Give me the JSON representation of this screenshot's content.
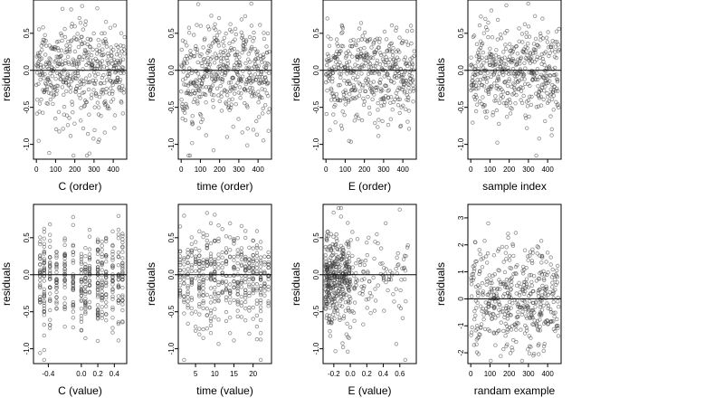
{
  "chart_data": [
    {
      "type": "scatter",
      "xlabel": "C (order)",
      "ylabel": "residuals",
      "xlim": [
        -15,
        470
      ],
      "ylim": [
        -1.2,
        0.95
      ],
      "xticks": [
        0,
        100,
        200,
        300,
        400
      ],
      "xtick_labels": [
        "0",
        "100",
        "200",
        "300",
        "400"
      ],
      "yticks": [
        0.5,
        0.0,
        -0.5,
        -1.0
      ],
      "ytick_labels": [
        "0.5",
        "0.0",
        "-0.5",
        "-1.0"
      ],
      "hline": 0,
      "n_points": 460
    },
    {
      "type": "scatter",
      "xlabel": "time (order)",
      "ylabel": "residuals",
      "xlim": [
        -15,
        470
      ],
      "ylim": [
        -1.2,
        0.95
      ],
      "xticks": [
        0,
        100,
        200,
        300,
        400
      ],
      "xtick_labels": [
        "0",
        "100",
        "200",
        "300",
        "400"
      ],
      "yticks": [
        0.5,
        0.0,
        -0.5,
        -1.0
      ],
      "ytick_labels": [
        "0.5",
        "0.0",
        "-0.5",
        "-1.0"
      ],
      "hline": 0,
      "n_points": 460
    },
    {
      "type": "scatter",
      "xlabel": "E (order)",
      "ylabel": "residuals",
      "xlim": [
        -15,
        470
      ],
      "ylim": [
        -1.2,
        0.95
      ],
      "xticks": [
        0,
        100,
        200,
        300,
        400
      ],
      "xtick_labels": [
        "0",
        "100",
        "200",
        "300",
        "400"
      ],
      "yticks": [
        0.5,
        0.0,
        -0.5,
        -1.0
      ],
      "ytick_labels": [
        "0.5",
        "0.0",
        "-0.5",
        "-1.0"
      ],
      "hline": 0,
      "n_points": 460
    },
    {
      "type": "scatter",
      "xlabel": "sample index",
      "ylabel": "residuals",
      "xlim": [
        -15,
        470
      ],
      "ylim": [
        -1.2,
        0.95
      ],
      "xticks": [
        0,
        100,
        200,
        300,
        400
      ],
      "xtick_labels": [
        "0",
        "100",
        "200",
        "300",
        "400"
      ],
      "yticks": [
        0.5,
        0.0,
        -0.5,
        -1.0
      ],
      "ytick_labels": [
        "0.5",
        "0.0",
        "-0.5",
        "-1.0"
      ],
      "hline": 0,
      "n_points": 460
    },
    {
      "type": "scatter",
      "xlabel": "C (value)",
      "ylabel": "residuals",
      "xlim": [
        -0.58,
        0.55
      ],
      "ylim": [
        -1.2,
        0.95
      ],
      "xticks": [
        -0.4,
        0.0,
        0.2,
        0.4
      ],
      "xtick_labels": [
        "-0.4",
        "0.0",
        "0.2",
        "0.4"
      ],
      "yticks": [
        0.5,
        0.0,
        -0.5,
        -1.0
      ],
      "ytick_labels": [
        "0.5",
        "0.0",
        "-0.5",
        "-1.0"
      ],
      "hline": 0,
      "n_points": 460
    },
    {
      "type": "scatter",
      "xlabel": "time (value)",
      "ylabel": "residuals",
      "xlim": [
        0.5,
        24.8
      ],
      "ylim": [
        -1.2,
        0.95
      ],
      "xticks": [
        5,
        10,
        15,
        20
      ],
      "xtick_labels": [
        "5",
        "10",
        "15",
        "20"
      ],
      "yticks": [
        0.5,
        0.0,
        -0.5,
        -1.0
      ],
      "ytick_labels": [
        "0.5",
        "0.0",
        "-0.5",
        "-1.0"
      ],
      "hline": 0,
      "n_points": 460
    },
    {
      "type": "scatter",
      "xlabel": "E (value)",
      "ylabel": "residuals",
      "xlim": [
        -0.33,
        0.8
      ],
      "ylim": [
        -1.2,
        0.95
      ],
      "xticks": [
        -0.2,
        0.0,
        0.2,
        0.4,
        0.6
      ],
      "xtick_labels": [
        "-0.2",
        "0.0",
        "0.2",
        "0.4",
        "0.6"
      ],
      "yticks": [
        0.5,
        0.0,
        -0.5,
        -1.0
      ],
      "ytick_labels": [
        "0.5",
        "0.0",
        "-0.5",
        "-1.0"
      ],
      "hline": 0,
      "n_points": 460
    },
    {
      "type": "scatter",
      "xlabel": "randam example",
      "ylabel": "residuals",
      "xlim": [
        -15,
        470
      ],
      "ylim": [
        -2.4,
        3.5
      ],
      "xticks": [
        0,
        100,
        200,
        300,
        400
      ],
      "xtick_labels": [
        "0",
        "100",
        "200",
        "300",
        "400"
      ],
      "yticks": [
        3,
        2,
        1,
        0,
        -1,
        -2
      ],
      "ytick_labels": [
        "3",
        "2",
        "1",
        "0",
        "-1",
        "-2"
      ],
      "hline": 0,
      "n_points": 460
    }
  ]
}
